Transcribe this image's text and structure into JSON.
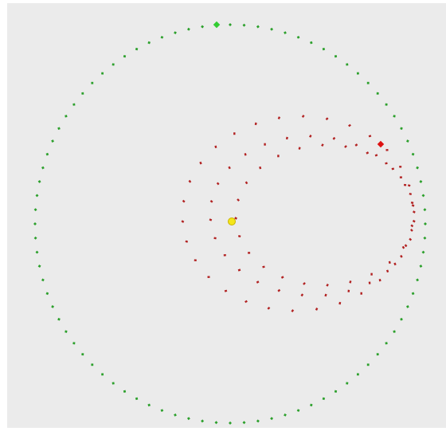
{
  "scene": {
    "background_color": "#ebebeb",
    "frame_color": "#ffffff",
    "central_body": {
      "icon": "star-dot",
      "fill": "#f5e61a",
      "stroke": "#c8b400"
    },
    "outer_orbit": {
      "trail_color": "#2ca02c",
      "marker_color": "#33cc33",
      "marker_icon": "planet-marker"
    },
    "inner_orbit": {
      "trail_color": "#b22222",
      "marker_color": "#dd1111",
      "marker_icon": "planet-marker"
    }
  }
}
